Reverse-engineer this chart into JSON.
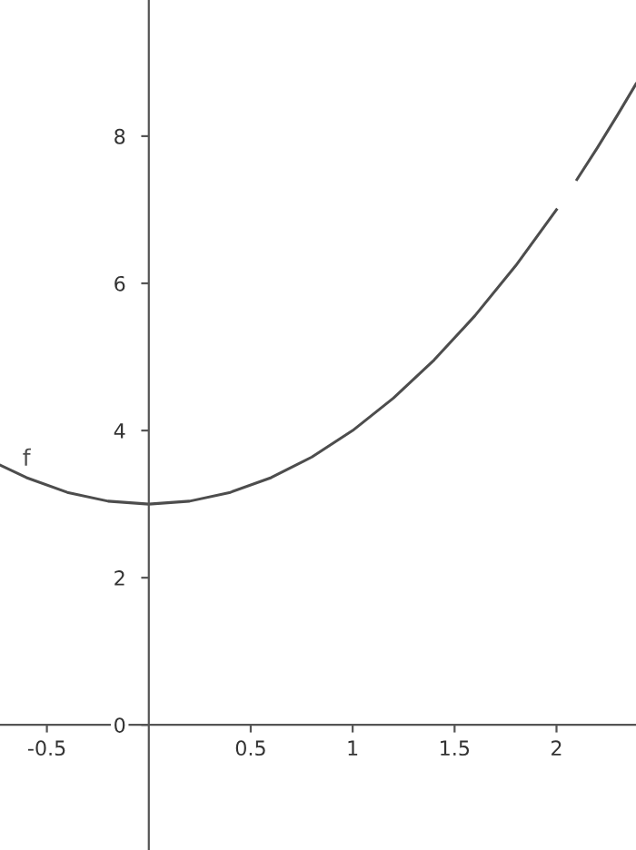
{
  "chart_data": {
    "type": "line",
    "x": [
      -0.73,
      -0.6,
      -0.4,
      -0.2,
      0,
      0.2,
      0.4,
      0.6,
      0.8,
      1.0,
      1.2,
      1.4,
      1.6,
      1.8,
      2.0,
      2.05,
      2.1,
      2.2,
      2.3,
      2.39
    ],
    "series": [
      {
        "name": "f",
        "color": "#4d4d4d",
        "values": [
          3.53,
          3.36,
          3.16,
          3.04,
          3.0,
          3.04,
          3.16,
          3.36,
          3.64,
          4.0,
          4.44,
          4.96,
          5.56,
          6.24,
          7.0,
          null,
          7.41,
          7.84,
          8.29,
          8.71
        ]
      }
    ],
    "xlim": [
      -0.73,
      2.39
    ],
    "ylim": [
      -1.7,
      9.85
    ],
    "xticks": [
      -0.5,
      0.5,
      1,
      1.5,
      2
    ],
    "yticks": [
      0,
      2,
      4,
      6,
      8
    ],
    "grid": false,
    "legend": false,
    "marker": "none",
    "line_style": "solid"
  }
}
